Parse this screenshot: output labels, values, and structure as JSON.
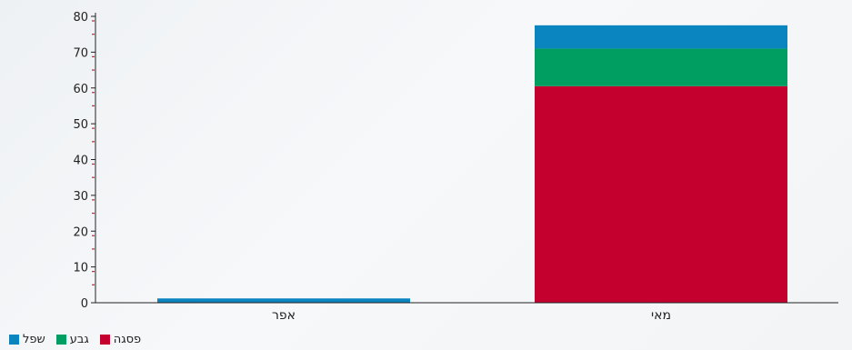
{
  "chart_data": {
    "type": "bar",
    "stacked": true,
    "categories": [
      "אפר",
      "מאי"
    ],
    "series": [
      {
        "name": "פסגה",
        "color": "#c4002f",
        "values": [
          0,
          60.5
        ]
      },
      {
        "name": "גבע",
        "color": "#009e60",
        "values": [
          0,
          10.5
        ]
      },
      {
        "name": "שפל",
        "color": "#0a85c0",
        "values": [
          1.2,
          6.5
        ]
      }
    ],
    "ylim": [
      0,
      80
    ],
    "yticks": [
      "0",
      "10",
      "20",
      "30",
      "40",
      "50",
      "60",
      "70",
      "80"
    ],
    "title": "",
    "xlabel": "",
    "ylabel": "",
    "grid": false,
    "legend_position": "bottom-left"
  }
}
